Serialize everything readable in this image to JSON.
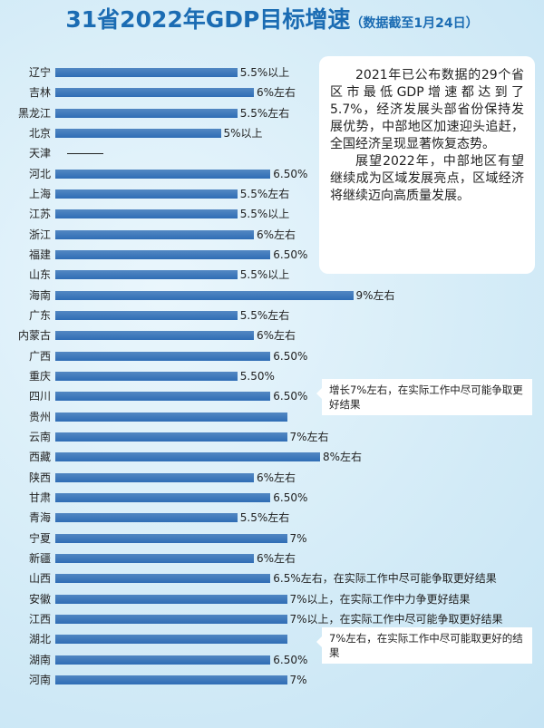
{
  "chart_data": {
    "type": "hbar",
    "title": "31省2022年GDP目标增速",
    "subtitle": "（数据截至1月24日）",
    "annotations": [
      "2021年已公布数据的29个省区市最低GDP增速都达到了5.7%，经济发展头部省份保持发展优势，中部地区加速迎头追赶，全国经济呈现显著恢复态势。",
      "展望2022年，中部地区有望继续成为区域发展亮点，区域经济将继续迈向高质量发展。"
    ],
    "categories": [
      "辽宁",
      "吉林",
      "黑龙江",
      "北京",
      "天津",
      "河北",
      "上海",
      "江苏",
      "浙江",
      "福建",
      "山东",
      "海南",
      "广东",
      "内蒙古",
      "广西",
      "重庆",
      "四川",
      "贵州",
      "云南",
      "西藏",
      "陕西",
      "甘肃",
      "青海",
      "宁夏",
      "新疆",
      "山西",
      "安徽",
      "江西",
      "湖北",
      "湖南",
      "河南"
    ],
    "values": [
      5.5,
      6,
      5.5,
      5,
      null,
      6.5,
      5.5,
      5.5,
      6,
      6.5,
      5.5,
      9,
      5.5,
      6,
      6.5,
      5.5,
      6.5,
      7,
      7,
      8,
      6,
      6.5,
      5.5,
      7,
      6,
      6.5,
      7,
      7,
      7,
      6.5,
      7
    ],
    "value_labels": [
      "5.5%以上",
      "6%左右",
      "5.5%左右",
      "5%以上",
      "——",
      "6.50%",
      "5.5%左右",
      "5.5%以上",
      "6%左右",
      "6.50%",
      "5.5%以上",
      "9%左右",
      "5.5%左右",
      "6%左右",
      "6.50%",
      "5.50%",
      "6.50%",
      "增长7%左右，在实际工作中尽可能争取更好结果",
      "7%左右",
      "8%左右",
      "6%左右",
      "6.50%",
      "5.5%左右",
      "7%",
      "6%左右",
      "6.5%左右，在实际工作中尽可能争取更好结果",
      "7%以上，在实际工作中力争更好结果",
      "7%以上，在实际工作中尽可能争取更好结果",
      "7%左右，在实际工作中尽可能取更好的结果",
      "6.50%",
      "7%"
    ],
    "color": "#2f6db5"
  }
}
